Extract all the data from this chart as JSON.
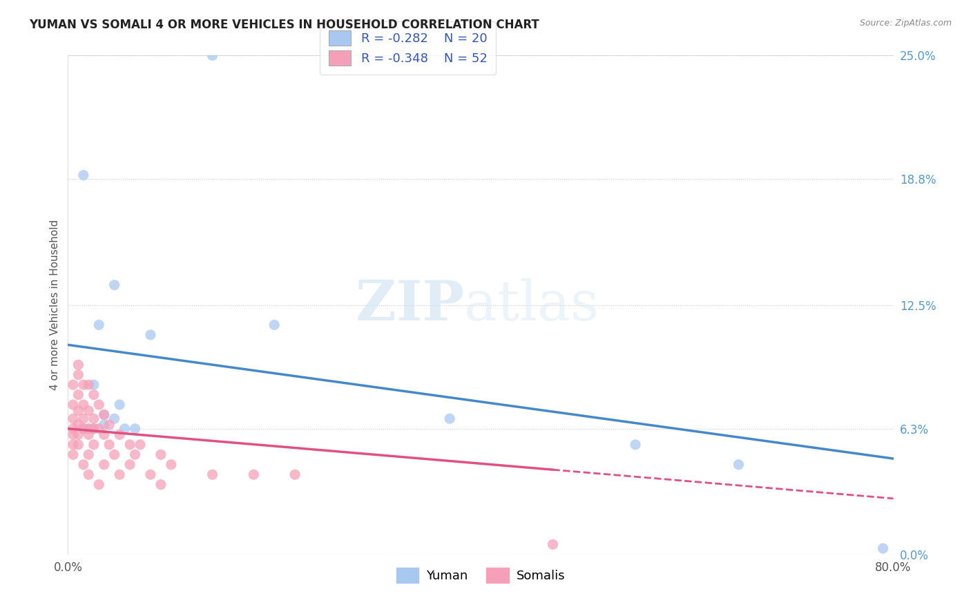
{
  "title": "YUMAN VS SOMALI 4 OR MORE VEHICLES IN HOUSEHOLD CORRELATION CHART",
  "source": "Source: ZipAtlas.com",
  "xmin": 0.0,
  "xmax": 80.0,
  "ymin": 0.0,
  "ymax": 25.0,
  "yticks": [
    0.0,
    6.3,
    12.5,
    18.8,
    25.0
  ],
  "ytick_labels": [
    "0.0%",
    "6.3%",
    "12.5%",
    "18.8%",
    "25.0%"
  ],
  "xticks": [
    0.0,
    80.0
  ],
  "xtick_labels": [
    "0.0%",
    "80.0%"
  ],
  "yuman_color": "#a8c8f0",
  "somali_color": "#f5a0b8",
  "yuman_line_color": "#4488cc",
  "somali_line_color": "#e05080",
  "legend_r_color": "#3355bb",
  "yuman_R": -0.282,
  "yuman_N": 20,
  "somali_R": -0.348,
  "somali_N": 52,
  "yuman_line_x0": 0.0,
  "yuman_line_y0": 10.5,
  "yuman_line_x1": 80.0,
  "yuman_line_y1": 4.8,
  "somali_line_x0": 0.0,
  "somali_line_y0": 6.3,
  "somali_line_x1": 80.0,
  "somali_line_y1": 2.8,
  "somali_dash_start_x": 47.0,
  "watermark_zip": "ZIP",
  "watermark_atlas": "atlas",
  "yuman_points": [
    [
      14.0,
      25.0
    ],
    [
      1.5,
      19.0
    ],
    [
      20.0,
      11.5
    ],
    [
      4.5,
      13.5
    ],
    [
      3.0,
      11.5
    ],
    [
      8.0,
      11.0
    ],
    [
      2.5,
      8.5
    ],
    [
      5.0,
      7.5
    ],
    [
      3.5,
      7.0
    ],
    [
      4.5,
      6.8
    ],
    [
      2.5,
      6.3
    ],
    [
      3.5,
      6.5
    ],
    [
      5.5,
      6.3
    ],
    [
      1.5,
      6.3
    ],
    [
      6.5,
      6.3
    ],
    [
      2.0,
      6.3
    ],
    [
      37.0,
      6.8
    ],
    [
      55.0,
      5.5
    ],
    [
      65.0,
      4.5
    ],
    [
      79.0,
      0.3
    ]
  ],
  "somali_points": [
    [
      1.0,
      9.5
    ],
    [
      1.0,
      9.0
    ],
    [
      1.5,
      8.5
    ],
    [
      2.0,
      8.5
    ],
    [
      0.5,
      8.5
    ],
    [
      1.0,
      8.0
    ],
    [
      2.5,
      8.0
    ],
    [
      0.5,
      7.5
    ],
    [
      1.5,
      7.5
    ],
    [
      3.0,
      7.5
    ],
    [
      1.0,
      7.2
    ],
    [
      2.0,
      7.2
    ],
    [
      3.5,
      7.0
    ],
    [
      0.5,
      6.8
    ],
    [
      1.5,
      6.8
    ],
    [
      2.5,
      6.8
    ],
    [
      4.0,
      6.5
    ],
    [
      1.0,
      6.5
    ],
    [
      2.0,
      6.3
    ],
    [
      3.0,
      6.3
    ],
    [
      0.5,
      6.3
    ],
    [
      1.5,
      6.3
    ],
    [
      2.5,
      6.3
    ],
    [
      0.5,
      6.0
    ],
    [
      1.0,
      6.0
    ],
    [
      2.0,
      6.0
    ],
    [
      3.5,
      6.0
    ],
    [
      5.0,
      6.0
    ],
    [
      0.5,
      5.5
    ],
    [
      1.0,
      5.5
    ],
    [
      2.5,
      5.5
    ],
    [
      4.0,
      5.5
    ],
    [
      6.0,
      5.5
    ],
    [
      7.0,
      5.5
    ],
    [
      0.5,
      5.0
    ],
    [
      2.0,
      5.0
    ],
    [
      4.5,
      5.0
    ],
    [
      6.5,
      5.0
    ],
    [
      9.0,
      5.0
    ],
    [
      1.5,
      4.5
    ],
    [
      3.5,
      4.5
    ],
    [
      6.0,
      4.5
    ],
    [
      10.0,
      4.5
    ],
    [
      2.0,
      4.0
    ],
    [
      5.0,
      4.0
    ],
    [
      8.0,
      4.0
    ],
    [
      14.0,
      4.0
    ],
    [
      18.0,
      4.0
    ],
    [
      22.0,
      4.0
    ],
    [
      3.0,
      3.5
    ],
    [
      9.0,
      3.5
    ],
    [
      47.0,
      0.5
    ]
  ]
}
